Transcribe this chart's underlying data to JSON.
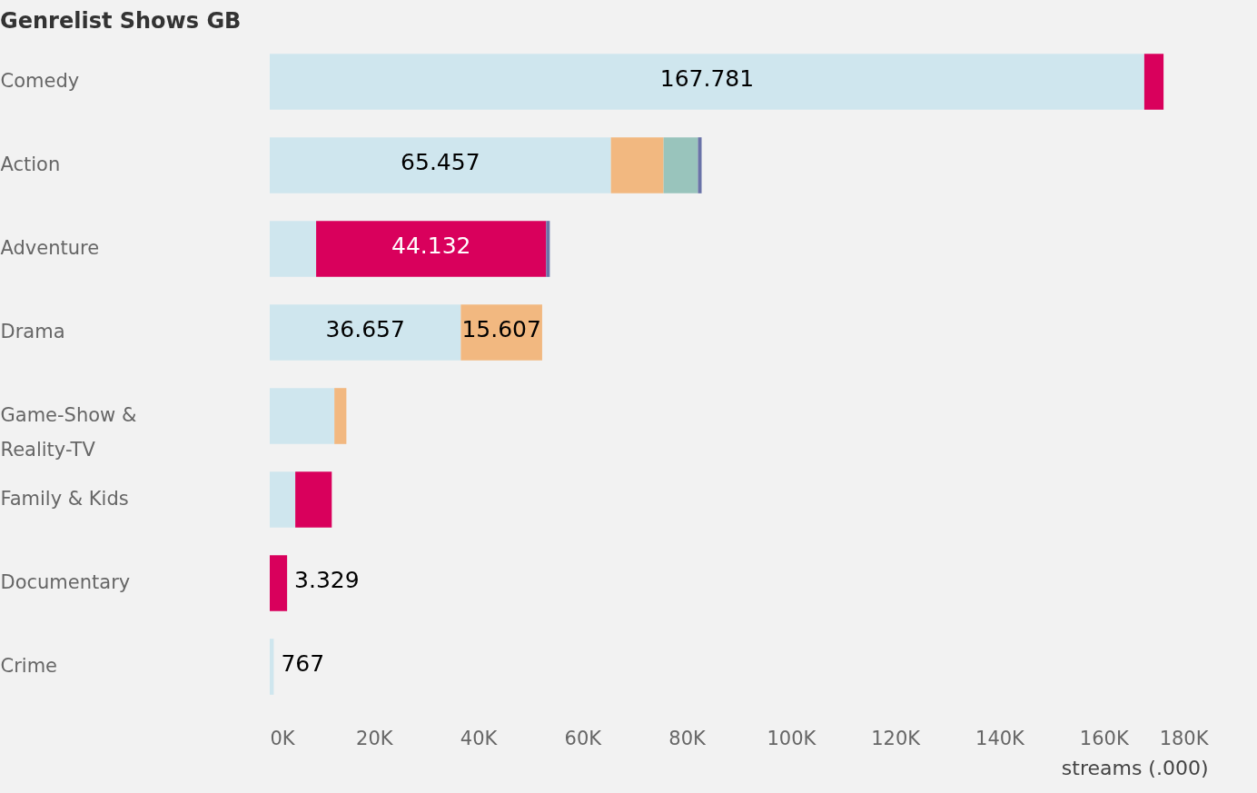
{
  "chart_data": {
    "type": "bar",
    "orientation": "horizontal",
    "stacked": true,
    "title": "Genrelist Shows GB",
    "xlabel": "streams (.000)",
    "categories": [
      "Comedy",
      "Action",
      "Adventure",
      "Drama",
      "Game-Show & Reality-TV",
      "Family & Kids",
      "Documentary",
      "Crime"
    ],
    "series": [
      {
        "color": "#cfe6ee",
        "values": [
          167781,
          65457,
          8900,
          36657,
          12400,
          4900,
          null,
          767
        ],
        "value_labels": [
          "167.781",
          "65.457",
          null,
          "36.657",
          null,
          null,
          null,
          "767"
        ]
      },
      {
        "color": "#d9005c",
        "values": [
          3700,
          null,
          44132,
          null,
          null,
          7000,
          3329,
          null
        ],
        "value_labels": [
          null,
          null,
          "44.132",
          null,
          null,
          null,
          "3.329",
          null
        ]
      },
      {
        "color": "#f2b880",
        "values": [
          null,
          10100,
          null,
          15607,
          2300,
          null,
          null,
          null
        ],
        "value_labels": [
          null,
          null,
          null,
          "15.607",
          null,
          null,
          null,
          null
        ]
      },
      {
        "color": "#99c4bc",
        "values": [
          null,
          6600,
          null,
          null,
          null,
          null,
          null,
          null
        ]
      },
      {
        "color": "#6a73a8",
        "values": [
          null,
          700,
          700,
          null,
          null,
          null,
          null,
          null
        ]
      }
    ],
    "xlim": [
      0,
      180000
    ],
    "xticks": [
      {
        "value": 0,
        "label": "0K"
      },
      {
        "value": 20000,
        "label": "20K"
      },
      {
        "value": 40000,
        "label": "40K"
      },
      {
        "value": 60000,
        "label": "60K"
      },
      {
        "value": 80000,
        "label": "80K"
      },
      {
        "value": 100000,
        "label": "100K"
      },
      {
        "value": 120000,
        "label": "120K"
      },
      {
        "value": 140000,
        "label": "140K"
      },
      {
        "value": 160000,
        "label": "160K"
      },
      {
        "value": 180000,
        "label": "180K"
      }
    ],
    "grid": false,
    "legend": false
  }
}
